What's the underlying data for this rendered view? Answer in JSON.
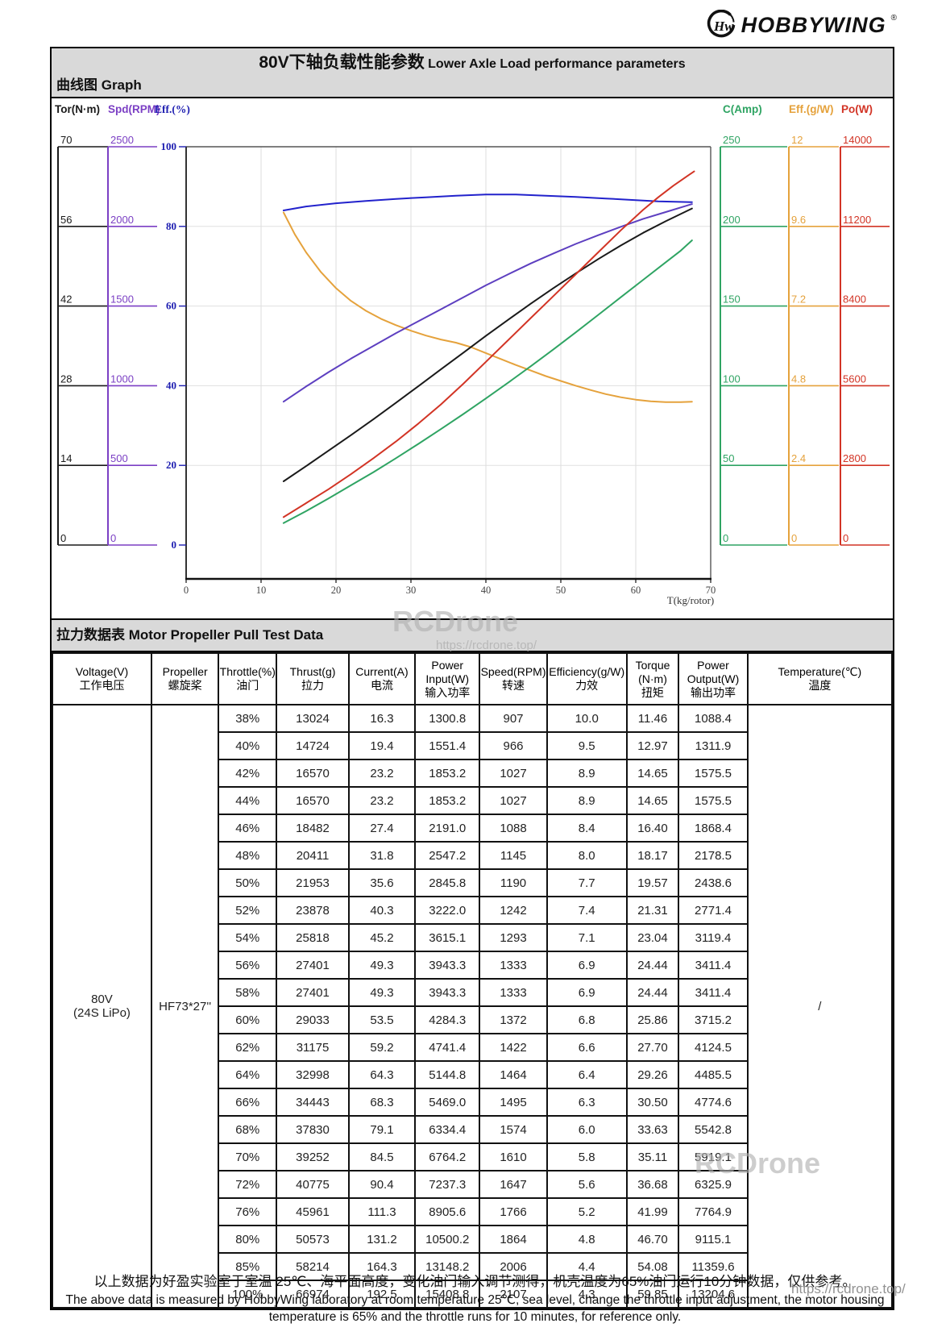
{
  "logo": {
    "brand": "HOBBYWING",
    "reg": "®",
    "monogram": "Hw"
  },
  "header": {
    "title_cn": "80V下轴负载性能参数",
    "title_en": "Lower Axle Load performance parameters",
    "graph_label": "曲线图 Graph",
    "table_label": "拉力数据表 Motor Propeller Pull Test Data"
  },
  "chart_data": {
    "type": "line",
    "xlabel": "T(kg/rotor)",
    "xlim": [
      0,
      70
    ],
    "x_ticks": [
      0,
      10,
      20,
      30,
      40,
      50,
      60,
      70
    ],
    "grid": true,
    "note": "Six value axes share one plot; series y-values below are normalized to the Eff.(%) 0-100 reference scale.",
    "axes": [
      {
        "name": "Tor(N·m)",
        "color": "#1a1a1a",
        "ticks": [
          "70",
          "56",
          "42",
          "28",
          "14",
          "0"
        ]
      },
      {
        "name": "Spd(RPM)",
        "color": "#7b3fc4",
        "ticks": [
          "2500",
          "2000",
          "1500",
          "1000",
          "500",
          "0"
        ]
      },
      {
        "name": "Eff.(%)",
        "color": "#1c1cb0",
        "ticks": [
          "100",
          "80",
          "60",
          "40",
          "20",
          "0"
        ]
      },
      {
        "name": "C(Amp)",
        "color": "#2fa463",
        "ticks": [
          "250",
          "200",
          "150",
          "100",
          "50",
          "0"
        ]
      },
      {
        "name": "Eff.(g/W)",
        "color": "#e5a23c",
        "ticks": [
          "12",
          "9.6",
          "7.2",
          "4.8",
          "2.4",
          "0"
        ]
      },
      {
        "name": "Po(W)",
        "color": "#d23425",
        "ticks": [
          "14000",
          "11200",
          "8400",
          "5600",
          "2800",
          "0"
        ]
      }
    ],
    "series": [
      {
        "name": "efficiency-pct",
        "axis": "Eff.(%)",
        "color": "#2222cc",
        "points": [
          [
            13,
            84
          ],
          [
            16,
            85
          ],
          [
            20,
            85.8
          ],
          [
            24,
            86.4
          ],
          [
            28,
            86.9
          ],
          [
            32,
            87.3
          ],
          [
            36,
            87.7
          ],
          [
            40,
            88
          ],
          [
            44,
            88
          ],
          [
            48,
            87.7
          ],
          [
            52,
            87.4
          ],
          [
            56,
            87
          ],
          [
            60,
            86.6
          ],
          [
            63,
            86.3
          ],
          [
            67.5,
            86.1
          ]
        ]
      },
      {
        "name": "efficiency-gw",
        "axis": "Eff.(g/W)",
        "color": "#e5a23c",
        "points": [
          [
            13,
            83.5
          ],
          [
            14.5,
            78
          ],
          [
            16,
            73.5
          ],
          [
            18,
            68.5
          ],
          [
            20,
            64.5
          ],
          [
            22,
            61.3
          ],
          [
            24,
            58.8
          ],
          [
            26,
            56.8
          ],
          [
            28,
            55.2
          ],
          [
            30,
            53.8
          ],
          [
            32,
            52.6
          ],
          [
            34,
            51.6
          ],
          [
            36,
            50.8
          ],
          [
            38,
            49.7
          ],
          [
            40,
            48.2
          ],
          [
            42,
            46.7
          ],
          [
            44,
            45.2
          ],
          [
            46,
            43.8
          ],
          [
            48,
            42.4
          ],
          [
            50,
            41.2
          ],
          [
            52,
            40
          ],
          [
            54,
            38.9
          ],
          [
            56,
            37.9
          ],
          [
            58,
            37.1
          ],
          [
            60,
            36.5
          ],
          [
            62,
            36.1
          ],
          [
            64,
            35.9
          ],
          [
            66,
            35.9
          ],
          [
            67.5,
            36
          ]
        ]
      },
      {
        "name": "speed-rpm",
        "axis": "Spd(RPM)",
        "color": "#5d3fc0",
        "points": [
          [
            13,
            36
          ],
          [
            16,
            39.8
          ],
          [
            19,
            43.4
          ],
          [
            22,
            46.8
          ],
          [
            25,
            50
          ],
          [
            28,
            53.2
          ],
          [
            31,
            56.2
          ],
          [
            34,
            59.2
          ],
          [
            37,
            62.2
          ],
          [
            40,
            65.2
          ],
          [
            43,
            68
          ],
          [
            46,
            70.7
          ],
          [
            49,
            73.2
          ],
          [
            52,
            75.6
          ],
          [
            55,
            77.8
          ],
          [
            58,
            79.9
          ],
          [
            61,
            81.9
          ],
          [
            64,
            83.6
          ],
          [
            67.5,
            85.6
          ]
        ]
      },
      {
        "name": "torque-nm",
        "axis": "Tor(N·m)",
        "color": "#1a1a1a",
        "points": [
          [
            13,
            16
          ],
          [
            16,
            19.8
          ],
          [
            19,
            23.7
          ],
          [
            22,
            27.6
          ],
          [
            25,
            31.6
          ],
          [
            28,
            35.7
          ],
          [
            31,
            39.9
          ],
          [
            34,
            44.1
          ],
          [
            37,
            48.3
          ],
          [
            40,
            52.5
          ],
          [
            43,
            56.6
          ],
          [
            46,
            60.6
          ],
          [
            49,
            64.5
          ],
          [
            52,
            68.2
          ],
          [
            55,
            71.8
          ],
          [
            58,
            75.2
          ],
          [
            61,
            78.4
          ],
          [
            64,
            81.3
          ],
          [
            67.5,
            84.5
          ]
        ]
      },
      {
        "name": "current-amp",
        "axis": "C(Amp)",
        "color": "#2fa463",
        "points": [
          [
            13,
            5.5
          ],
          [
            16,
            8.5
          ],
          [
            19,
            11.7
          ],
          [
            22,
            15
          ],
          [
            25,
            18.3
          ],
          [
            28,
            21.8
          ],
          [
            31,
            25.4
          ],
          [
            34,
            29.1
          ],
          [
            37,
            32.9
          ],
          [
            40,
            36.8
          ],
          [
            43,
            40.8
          ],
          [
            46,
            44.9
          ],
          [
            49,
            49.1
          ],
          [
            52,
            53.4
          ],
          [
            55,
            57.8
          ],
          [
            58,
            62.2
          ],
          [
            61,
            66.6
          ],
          [
            64,
            71
          ],
          [
            66,
            73.9
          ],
          [
            67.5,
            76.5
          ]
        ]
      },
      {
        "name": "power-output-w",
        "axis": "Po(W)",
        "color": "#d23425",
        "points": [
          [
            13,
            7
          ],
          [
            16,
            10.5
          ],
          [
            19,
            14
          ],
          [
            22,
            17.8
          ],
          [
            25,
            21.8
          ],
          [
            28,
            26
          ],
          [
            31,
            30.5
          ],
          [
            34,
            35.3
          ],
          [
            37,
            40.5
          ],
          [
            40,
            46
          ],
          [
            43,
            51.5
          ],
          [
            46,
            57
          ],
          [
            49,
            62.5
          ],
          [
            52,
            68
          ],
          [
            55,
            73.5
          ],
          [
            58,
            79
          ],
          [
            61,
            84.2
          ],
          [
            63,
            87.3
          ],
          [
            65,
            90.2
          ],
          [
            67,
            92.8
          ],
          [
            67.8,
            93.8
          ]
        ]
      }
    ]
  },
  "table": {
    "headers": [
      {
        "en": "Voltage(V)",
        "cn": "工作电压"
      },
      {
        "en": "Propeller",
        "cn": "螺旋桨"
      },
      {
        "en": "Throttle(%)",
        "cn": "油门"
      },
      {
        "en": "Thrust(g)",
        "cn": "拉力"
      },
      {
        "en": "Current(A)",
        "cn": "电流"
      },
      {
        "en": "Power Input(W)",
        "cn": "输入功率"
      },
      {
        "en": "Speed(RPM)",
        "cn": "转速"
      },
      {
        "en": "Efficiency(g/W)",
        "cn": "力效"
      },
      {
        "en": "Torque (N·m)",
        "cn": "扭矩"
      },
      {
        "en": "Power Output(W)",
        "cn": "输出功率"
      },
      {
        "en": "Temperature(℃)",
        "cn": "温度"
      }
    ],
    "voltage_line1": "80V",
    "voltage_line2": "(24S LiPo)",
    "propeller": "HF73*27''",
    "temperature": "/",
    "rows": [
      [
        "38%",
        "13024",
        "16.3",
        "1300.8",
        "907",
        "10.0",
        "11.46",
        "1088.4"
      ],
      [
        "40%",
        "14724",
        "19.4",
        "1551.4",
        "966",
        "9.5",
        "12.97",
        "1311.9"
      ],
      [
        "42%",
        "16570",
        "23.2",
        "1853.2",
        "1027",
        "8.9",
        "14.65",
        "1575.5"
      ],
      [
        "44%",
        "16570",
        "23.2",
        "1853.2",
        "1027",
        "8.9",
        "14.65",
        "1575.5"
      ],
      [
        "46%",
        "18482",
        "27.4",
        "2191.0",
        "1088",
        "8.4",
        "16.40",
        "1868.4"
      ],
      [
        "48%",
        "20411",
        "31.8",
        "2547.2",
        "1145",
        "8.0",
        "18.17",
        "2178.5"
      ],
      [
        "50%",
        "21953",
        "35.6",
        "2845.8",
        "1190",
        "7.7",
        "19.57",
        "2438.6"
      ],
      [
        "52%",
        "23878",
        "40.3",
        "3222.0",
        "1242",
        "7.4",
        "21.31",
        "2771.4"
      ],
      [
        "54%",
        "25818",
        "45.2",
        "3615.1",
        "1293",
        "7.1",
        "23.04",
        "3119.4"
      ],
      [
        "56%",
        "27401",
        "49.3",
        "3943.3",
        "1333",
        "6.9",
        "24.44",
        "3411.4"
      ],
      [
        "58%",
        "27401",
        "49.3",
        "3943.3",
        "1333",
        "6.9",
        "24.44",
        "3411.4"
      ],
      [
        "60%",
        "29033",
        "53.5",
        "4284.3",
        "1372",
        "6.8",
        "25.86",
        "3715.2"
      ],
      [
        "62%",
        "31175",
        "59.2",
        "4741.4",
        "1422",
        "6.6",
        "27.70",
        "4124.5"
      ],
      [
        "64%",
        "32998",
        "64.3",
        "5144.8",
        "1464",
        "6.4",
        "29.26",
        "4485.5"
      ],
      [
        "66%",
        "34443",
        "68.3",
        "5469.0",
        "1495",
        "6.3",
        "30.50",
        "4774.6"
      ],
      [
        "68%",
        "37830",
        "79.1",
        "6334.4",
        "1574",
        "6.0",
        "33.63",
        "5542.8"
      ],
      [
        "70%",
        "39252",
        "84.5",
        "6764.2",
        "1610",
        "5.8",
        "35.11",
        "5919.1"
      ],
      [
        "72%",
        "40775",
        "90.4",
        "7237.3",
        "1647",
        "5.6",
        "36.68",
        "6325.9"
      ],
      [
        "76%",
        "45961",
        "111.3",
        "8905.6",
        "1766",
        "5.2",
        "41.99",
        "7764.9"
      ],
      [
        "80%",
        "50573",
        "131.2",
        "10500.2",
        "1864",
        "4.8",
        "46.70",
        "9115.1"
      ],
      [
        "85%",
        "58214",
        "164.3",
        "13148.2",
        "2006",
        "4.4",
        "54.08",
        "11359.6"
      ],
      [
        "100%",
        "66974",
        "192.5",
        "15408.8",
        "2107",
        "4.3",
        "59.85",
        "13204.6"
      ]
    ]
  },
  "footer": {
    "line1_cn": "以上数据为好盈实验室于室温 25℃、海平面高度，变化油门输入调节测得，机壳温度为65%油门运行10分钟数据，仅供参考。",
    "line2_en": "The above data is measured by HobbyWing laboratory at room temperature 25℃, sea level, change the throttle input adjustment, the motor housing",
    "line3_en": "temperature is 65% and the throttle runs for 10 minutes, for reference only."
  },
  "watermark": {
    "name": "RCDrone",
    "url": "https://rcdrone.top/"
  }
}
